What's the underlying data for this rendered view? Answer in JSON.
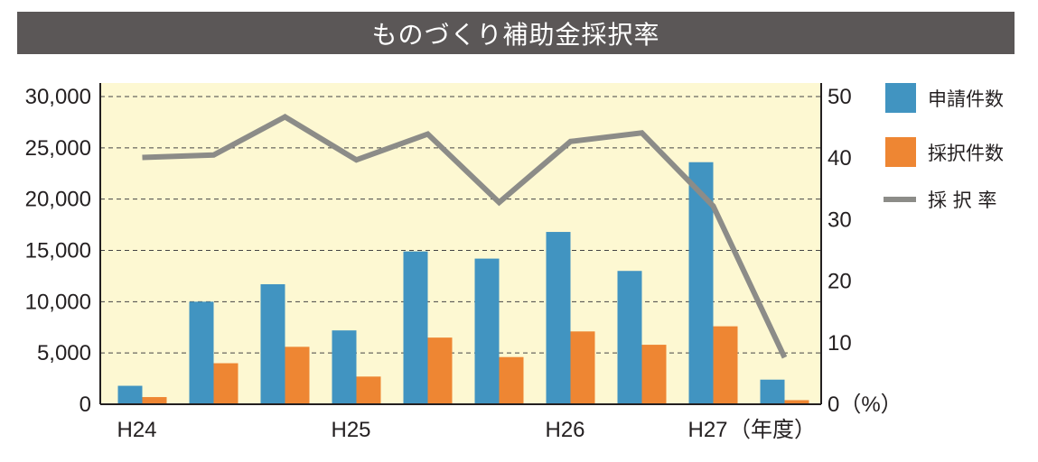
{
  "chart_data": {
    "type": "bar",
    "title": "ものづくり補助金採択率",
    "categories": [
      "1",
      "2",
      "3",
      "4",
      "5",
      "6",
      "7",
      "8",
      "9",
      "10"
    ],
    "x_labels": [
      {
        "index": 0,
        "text": "H24"
      },
      {
        "index": 3,
        "text": "H25"
      },
      {
        "index": 6,
        "text": "H26"
      },
      {
        "index": 8,
        "text": "H27"
      }
    ],
    "x_unit": "（年度）",
    "series": [
      {
        "name": "申請件数",
        "axis": "left",
        "color": "#4194c1",
        "values": [
          1800,
          10000,
          11700,
          7200,
          14900,
          14200,
          16800,
          13000,
          23600,
          2400
        ]
      },
      {
        "name": "採択件数",
        "axis": "left",
        "color": "#ee8633",
        "values": [
          700,
          4000,
          5600,
          2700,
          6500,
          4600,
          7100,
          5800,
          7600,
          400
        ]
      },
      {
        "name": "採 択 率",
        "axis": "right",
        "type": "line",
        "color": "#8c8c88",
        "values": [
          40.1,
          40.5,
          46.7,
          39.7,
          43.9,
          32.8,
          42.7,
          44.1,
          32.2,
          7.6
        ]
      }
    ],
    "y_left": {
      "ylim": [
        0,
        30000
      ],
      "ticks": [
        "0",
        "5,000",
        "10,000",
        "15,000",
        "20,000",
        "25,000",
        "30,000"
      ]
    },
    "y_right": {
      "ylim": [
        0,
        50
      ],
      "ticks": [
        "0（%）",
        "10",
        "20",
        "30",
        "40",
        "50"
      ]
    },
    "grid": true,
    "plot_background": "#fdf8d2",
    "legend_position": "right"
  }
}
